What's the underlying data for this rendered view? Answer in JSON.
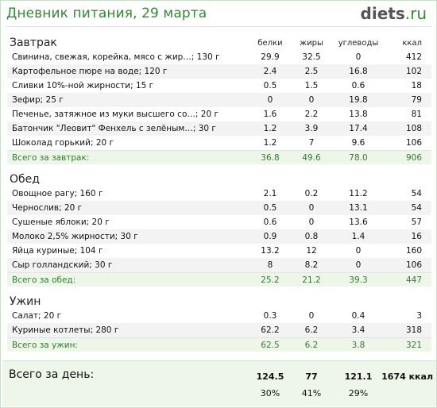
{
  "header": {
    "title": "Дневник питания, 29 марта",
    "logo_main": "diets",
    "logo_ext": ".ru"
  },
  "columns": [
    "белки",
    "жиры",
    "углеводы",
    "ккал"
  ],
  "meals": [
    {
      "name": "Завтрак",
      "items": [
        {
          "food": "Свинина, свежая, корейка, мясо с жир…; 130 г",
          "protein": "29.9",
          "fat": "32.5",
          "carbs": "0",
          "kcal": "412"
        },
        {
          "food": "Картофельное пюре на воде; 120 г",
          "protein": "2.4",
          "fat": "2.5",
          "carbs": "16.8",
          "kcal": "102"
        },
        {
          "food": "Сливки 10%-ной жирности; 15 г",
          "protein": "0.5",
          "fat": "1.5",
          "carbs": "0.6",
          "kcal": "18"
        },
        {
          "food": "Зефир; 25 г",
          "protein": "0",
          "fat": "0",
          "carbs": "19.8",
          "kcal": "79"
        },
        {
          "food": "Печенье, затяжное из муки высшего со…; 20 г",
          "protein": "1.6",
          "fat": "2.2",
          "carbs": "13.8",
          "kcal": "81"
        },
        {
          "food": "Батончик \"Леовит\" Фенхель с зелёным…; 30 г",
          "protein": "1.2",
          "fat": "3.9",
          "carbs": "17.4",
          "kcal": "108"
        },
        {
          "food": "Шоколад горький; 20 г",
          "protein": "1.2",
          "fat": "7",
          "carbs": "9.6",
          "kcal": "106"
        }
      ],
      "total": {
        "label": "Всего за завтрак:",
        "protein": "36.8",
        "fat": "49.6",
        "carbs": "78.0",
        "kcal": "906"
      }
    },
    {
      "name": "Обед",
      "items": [
        {
          "food": "Овощное рагу; 160 г",
          "protein": "2.1",
          "fat": "0.2",
          "carbs": "11.2",
          "kcal": "54"
        },
        {
          "food": "Чернослив; 20 г",
          "protein": "0.5",
          "fat": "0",
          "carbs": "13.1",
          "kcal": "54"
        },
        {
          "food": "Сушеные яблоки; 20 г",
          "protein": "0.6",
          "fat": "0",
          "carbs": "13.6",
          "kcal": "57"
        },
        {
          "food": "Молоко 2,5% жирности; 30 г",
          "protein": "0.9",
          "fat": "0.8",
          "carbs": "1.4",
          "kcal": "16"
        },
        {
          "food": "Яйца куриные; 104 г",
          "protein": "13.2",
          "fat": "12",
          "carbs": "0",
          "kcal": "160"
        },
        {
          "food": "Сыр голландский; 30 г",
          "protein": "8",
          "fat": "8.2",
          "carbs": "0",
          "kcal": "106"
        }
      ],
      "total": {
        "label": "Всего за обед:",
        "protein": "25.2",
        "fat": "21.2",
        "carbs": "39.3",
        "kcal": "447"
      }
    },
    {
      "name": "Ужин",
      "items": [
        {
          "food": "Салат; 20 г",
          "protein": "0.3",
          "fat": "0",
          "carbs": "0.4",
          "kcal": "3"
        },
        {
          "food": "Куриные котлеты; 280 г",
          "protein": "62.2",
          "fat": "6.2",
          "carbs": "3.4",
          "kcal": "318"
        }
      ],
      "total": {
        "label": "Всего за ужин:",
        "protein": "62.5",
        "fat": "6.2",
        "carbs": "3.8",
        "kcal": "321"
      }
    }
  ],
  "day_total": {
    "label": "Всего за день:",
    "protein": "124.5",
    "fat": "77",
    "carbs": "121.1",
    "kcal": "1674 ккал",
    "protein_pct": "30%",
    "fat_pct": "41%",
    "carbs_pct": "29%"
  }
}
